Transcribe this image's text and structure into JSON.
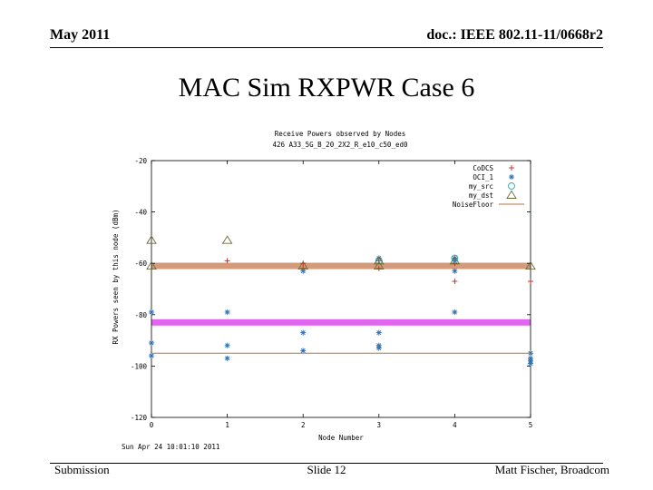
{
  "header": {
    "date": "May 2011",
    "doc": "doc.: IEEE 802.11-11/0668r2"
  },
  "slide": {
    "title": "MAC Sim RXPWR Case 6"
  },
  "footer": {
    "left": "Submission",
    "center": "Slide 12",
    "right": "Matt Fischer, Broadcom"
  },
  "chart_data": {
    "type": "scatter",
    "title": "Receive Powers observed by Nodes",
    "subtitle": "426 A33_5G_B_20_2X2_R_e10_c50_ed0",
    "xlabel": "Node Number",
    "ylabel": "RX Powers seen by this node (dBm)",
    "timestamp": "Sun Apr 24 10:01:10 2011",
    "xlim": [
      0,
      5
    ],
    "ylim": [
      -120,
      -20
    ],
    "xticks": [
      "0",
      "1",
      "2",
      "3",
      "4",
      "5"
    ],
    "yticks": [
      "-20",
      "-40",
      "-60",
      "-80",
      "-100",
      "-120"
    ],
    "grid": false,
    "legend_position": "top-right",
    "series": [
      {
        "name": "CoDCS",
        "marker": "plus",
        "color": "#c8261e",
        "x": [
          1,
          2,
          2,
          3,
          3,
          4,
          4,
          5
        ],
        "y": [
          -59,
          -60,
          -62,
          -59,
          -62,
          -60,
          -67,
          -67
        ]
      },
      {
        "name": "OCI_1",
        "marker": "asterisk",
        "color": "#2f6fb0",
        "x": [
          0,
          0,
          0,
          1,
          1,
          1,
          2,
          2,
          2,
          3,
          3,
          3,
          3,
          4,
          4,
          4,
          4,
          5,
          5,
          5,
          5
        ],
        "y": [
          -79,
          -91,
          -96,
          -79,
          -92,
          -97,
          -87,
          -94,
          -63,
          -87,
          -92,
          -93,
          -58,
          -79,
          -59,
          -63,
          -58,
          -95,
          -97,
          -99,
          -98
        ]
      },
      {
        "name": "my_src",
        "marker": "circle",
        "color": "#2aa7b5",
        "x": [
          3,
          4
        ],
        "y": [
          -59,
          -58
        ]
      },
      {
        "name": "my_dst",
        "marker": "triangle",
        "color": "#6b6b3a",
        "x": [
          0,
          0,
          1,
          2,
          3,
          3,
          4,
          5
        ],
        "y": [
          -51,
          -61,
          -51,
          -61,
          -59,
          -61,
          -59,
          -61
        ]
      },
      {
        "name": "NoiseFloor",
        "marker": "line",
        "color": "#b07440",
        "y": -95
      }
    ],
    "bands": [
      {
        "y": -61,
        "color": "#d49a7a"
      },
      {
        "y": -83,
        "color": "#e066f0"
      }
    ]
  }
}
